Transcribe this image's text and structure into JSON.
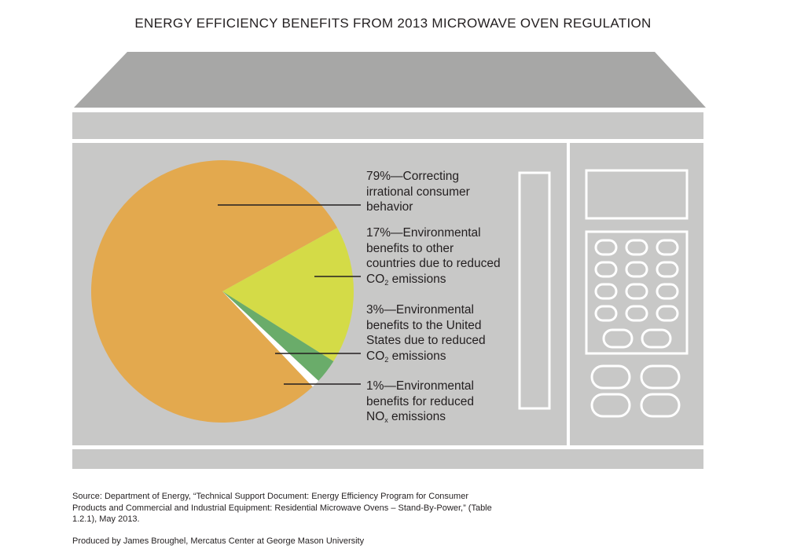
{
  "title": "ENERGY EFFICIENCY BENEFITS FROM 2013 MICROWAVE OVEN REGULATION",
  "chart_data": {
    "type": "pie",
    "title": "ENERGY EFFICIENCY BENEFITS FROM 2013 MICROWAVE OVEN REGULATION",
    "slices": [
      {
        "value": 79,
        "color": "#e3a94e",
        "label": {
          "pct": "79%",
          "dash": "—",
          "lines": [
            "Correcting",
            "irrational consumer",
            "behavior"
          ],
          "sub": ""
        }
      },
      {
        "value": 17,
        "color": "#d4db47",
        "label": {
          "pct": "17%",
          "dash": "—",
          "lines": [
            "Environmental",
            "benefits to other",
            "countries due to reduced",
            "CO"
          ],
          "sub": "2",
          "tail": " emissions"
        }
      },
      {
        "value": 3,
        "color": "#6aac6a",
        "label": {
          "pct": "3%",
          "dash": "—",
          "lines": [
            "Environmental",
            "benefits to the United",
            "States due to reduced",
            "CO"
          ],
          "sub": "2",
          "tail": " emissions"
        }
      },
      {
        "value": 1,
        "color": "#ffffff",
        "label": {
          "pct": "1%",
          "dash": "—",
          "lines": [
            "Environmental",
            "benefits for reduced",
            "NO"
          ],
          "sub": "x",
          "tail": " emissions"
        }
      }
    ]
  },
  "footer": {
    "source": "Source: Department of Energy, “Technical Support Document: Energy Efficiency Program for Consumer Products and Commercial and Industrial Equipment: Residential Microwave Ovens – Stand-By-Power,” (Table 1.2.1), May 2013.",
    "produced": "Produced by James Broughel, Mercatus Center at George Mason University"
  },
  "colors": {
    "oven_body": "#c8c8c7",
    "oven_top": "#a7a7a6",
    "oven_line": "#ffffff"
  }
}
